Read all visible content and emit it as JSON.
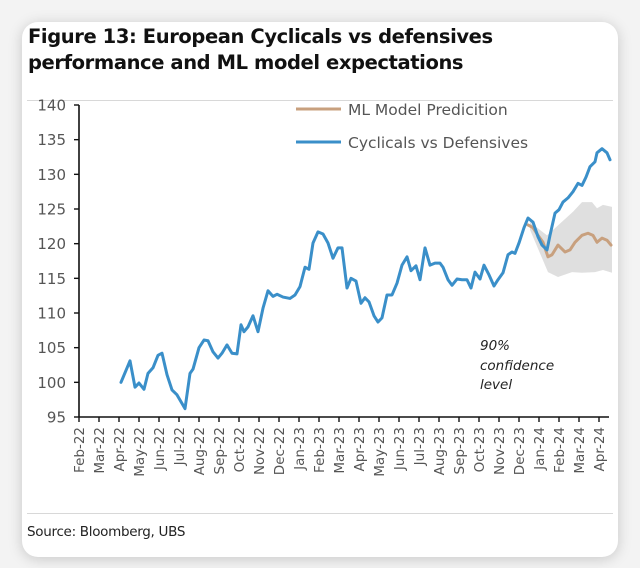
{
  "figure": {
    "title": "Figure 13: European Cyclicals vs defensives performance and ML model expectations",
    "source": "Source: Bloomberg, UBS"
  },
  "colors": {
    "cyclicals": "#3a8fc9",
    "prediction": "#c8a07e",
    "band": "#d9d9d9",
    "axis": "#111111"
  },
  "chart_data": {
    "type": "line",
    "title": "Figure 13: European Cyclicals vs defensives performance and ML model expectations",
    "xlabel": "",
    "ylabel": "",
    "ylim": [
      95,
      140
    ],
    "yticks": [
      95,
      100,
      105,
      110,
      115,
      120,
      125,
      130,
      135,
      140
    ],
    "categories": [
      "Feb-22",
      "Mar-22",
      "Apr-22",
      "May-22",
      "Jun-22",
      "Jul-22",
      "Aug-22",
      "Sep-22",
      "Oct-22",
      "Nov-22",
      "Dec-22",
      "Jan-23",
      "Feb-23",
      "Mar-23",
      "Apr-23",
      "May-23",
      "Jun-23",
      "Jul-23",
      "Aug-23",
      "Sep-23",
      "Oct-23",
      "Nov-23",
      "Dec-23",
      "Jan-24",
      "Feb-24",
      "Mar-24",
      "Apr-24"
    ],
    "x_units": "months since Feb-22",
    "grid": false,
    "legend_position": "top-right",
    "legend": [
      "ML Model Predicition",
      "Cyclicals vs Defensives"
    ],
    "series": [
      {
        "name": "Cyclicals vs Defensives",
        "points": [
          [
            2.1,
            100.0
          ],
          [
            2.55,
            103.1
          ],
          [
            2.8,
            99.3
          ],
          [
            3.0,
            99.9
          ],
          [
            3.25,
            99.0
          ],
          [
            3.45,
            101.3
          ],
          [
            3.7,
            102.1
          ],
          [
            3.95,
            103.9
          ],
          [
            4.15,
            104.2
          ],
          [
            4.4,
            101.1
          ],
          [
            4.65,
            98.9
          ],
          [
            4.9,
            98.2
          ],
          [
            5.1,
            97.2
          ],
          [
            5.3,
            96.2
          ],
          [
            5.55,
            101.3
          ],
          [
            5.7,
            101.9
          ],
          [
            6.0,
            105.0
          ],
          [
            6.25,
            106.1
          ],
          [
            6.45,
            106.0
          ],
          [
            6.7,
            104.4
          ],
          [
            6.95,
            103.5
          ],
          [
            7.15,
            104.2
          ],
          [
            7.4,
            105.4
          ],
          [
            7.65,
            104.2
          ],
          [
            7.9,
            104.1
          ],
          [
            8.1,
            108.3
          ],
          [
            8.25,
            107.3
          ],
          [
            8.45,
            108.0
          ],
          [
            8.7,
            109.6
          ],
          [
            8.95,
            107.3
          ],
          [
            9.2,
            110.7
          ],
          [
            9.45,
            113.2
          ],
          [
            9.7,
            112.4
          ],
          [
            9.9,
            112.7
          ],
          [
            10.2,
            112.3
          ],
          [
            10.55,
            112.1
          ],
          [
            10.8,
            112.6
          ],
          [
            11.05,
            113.8
          ],
          [
            11.3,
            116.6
          ],
          [
            11.5,
            116.3
          ],
          [
            11.7,
            120.1
          ],
          [
            11.95,
            121.7
          ],
          [
            12.2,
            121.4
          ],
          [
            12.45,
            120.1
          ],
          [
            12.7,
            117.9
          ],
          [
            12.95,
            119.4
          ],
          [
            13.15,
            119.4
          ],
          [
            13.4,
            113.6
          ],
          [
            13.6,
            115.0
          ],
          [
            13.85,
            114.6
          ],
          [
            14.1,
            111.4
          ],
          [
            14.3,
            112.2
          ],
          [
            14.5,
            111.6
          ],
          [
            14.75,
            109.6
          ],
          [
            14.95,
            108.7
          ],
          [
            15.15,
            109.3
          ],
          [
            15.4,
            112.6
          ],
          [
            15.65,
            112.6
          ],
          [
            15.9,
            114.3
          ],
          [
            16.15,
            116.9
          ],
          [
            16.4,
            118.1
          ],
          [
            16.6,
            116.1
          ],
          [
            16.85,
            116.8
          ],
          [
            17.05,
            114.8
          ],
          [
            17.3,
            119.4
          ],
          [
            17.55,
            116.9
          ],
          [
            17.8,
            117.2
          ],
          [
            18.05,
            117.2
          ],
          [
            18.2,
            116.6
          ],
          [
            18.45,
            114.8
          ],
          [
            18.65,
            114.0
          ],
          [
            18.9,
            114.9
          ],
          [
            19.15,
            114.8
          ],
          [
            19.4,
            114.8
          ],
          [
            19.6,
            113.6
          ],
          [
            19.8,
            115.9
          ],
          [
            20.05,
            114.9
          ],
          [
            20.25,
            116.9
          ],
          [
            20.5,
            115.5
          ],
          [
            20.75,
            113.9
          ],
          [
            20.95,
            114.8
          ],
          [
            21.2,
            115.8
          ],
          [
            21.45,
            118.4
          ],
          [
            21.65,
            118.8
          ],
          [
            21.8,
            118.6
          ],
          [
            22.0,
            120.1
          ],
          [
            22.25,
            122.3
          ],
          [
            22.45,
            123.7
          ],
          [
            22.7,
            123.1
          ],
          [
            22.95,
            121.0
          ],
          [
            23.15,
            119.8
          ],
          [
            23.4,
            119.1
          ],
          [
            23.55,
            121.2
          ],
          [
            23.8,
            124.4
          ],
          [
            24.0,
            124.9
          ],
          [
            24.2,
            126.0
          ],
          [
            24.45,
            126.6
          ],
          [
            24.7,
            127.5
          ],
          [
            24.95,
            128.7
          ],
          [
            25.15,
            128.4
          ],
          [
            25.35,
            129.6
          ],
          [
            25.55,
            131.1
          ],
          [
            25.8,
            131.8
          ],
          [
            25.9,
            133.1
          ],
          [
            26.15,
            133.7
          ],
          [
            26.4,
            133.1
          ],
          [
            26.55,
            132.1
          ]
        ]
      },
      {
        "name": "ML Model Predicition",
        "points": [
          [
            22.45,
            122.7
          ],
          [
            22.7,
            122.3
          ],
          [
            22.95,
            121.2
          ],
          [
            23.2,
            120.2
          ],
          [
            23.45,
            118.1
          ],
          [
            23.65,
            118.4
          ],
          [
            23.95,
            119.8
          ],
          [
            24.3,
            118.8
          ],
          [
            24.55,
            119.1
          ],
          [
            24.8,
            120.2
          ],
          [
            25.15,
            121.2
          ],
          [
            25.45,
            121.5
          ],
          [
            25.7,
            121.2
          ],
          [
            25.9,
            120.2
          ],
          [
            26.15,
            120.8
          ],
          [
            26.4,
            120.5
          ],
          [
            26.6,
            119.8
          ]
        ]
      }
    ],
    "confidence_band": {
      "label": "90% confidence level",
      "upper": [
        [
          22.55,
          123.1
        ],
        [
          23.4,
          121.2
        ],
        [
          24.7,
          124.6
        ],
        [
          25.15,
          126.0
        ],
        [
          25.65,
          126.0
        ],
        [
          25.9,
          125.1
        ],
        [
          26.2,
          125.6
        ],
        [
          26.65,
          125.3
        ]
      ],
      "lower": [
        [
          22.55,
          122.0
        ],
        [
          23.45,
          115.9
        ],
        [
          23.95,
          115.2
        ],
        [
          24.65,
          115.9
        ],
        [
          25.15,
          115.8
        ],
        [
          25.8,
          115.9
        ],
        [
          26.2,
          116.2
        ],
        [
          26.65,
          115.8
        ]
      ]
    },
    "annotations": [
      "90%",
      "confidence",
      "level"
    ]
  }
}
